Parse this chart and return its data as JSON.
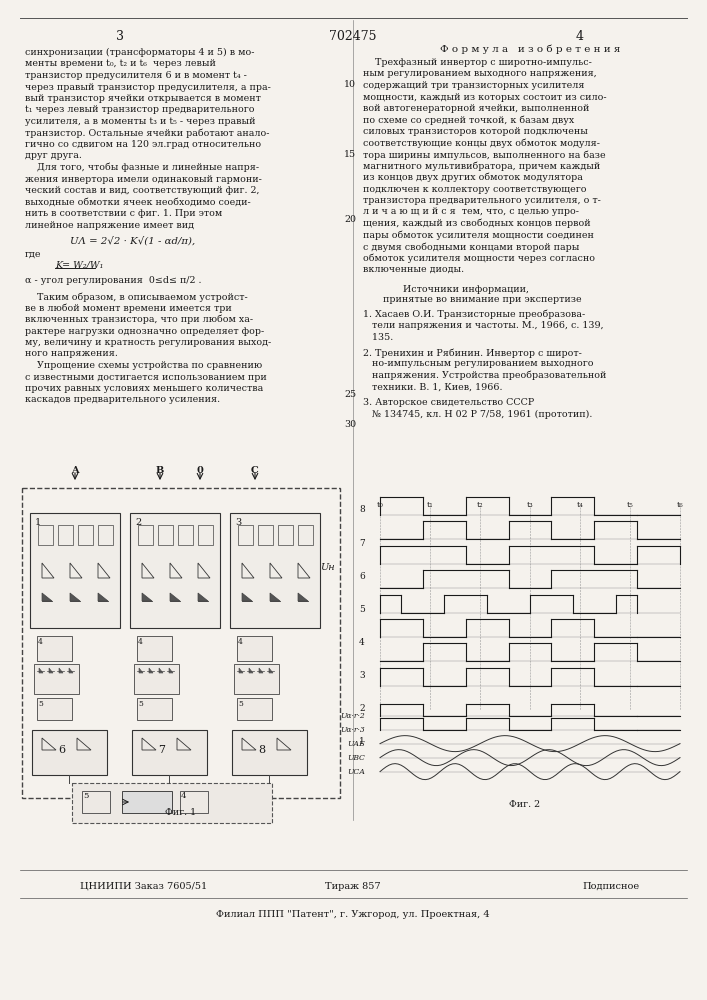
{
  "page_color": "#f5f2ed",
  "border_color": "#333333",
  "text_color": "#1a1a1a",
  "title": "702475",
  "page_num_left": "3",
  "page_num_right": "4",
  "formula_header": "Ф о р м у л а   и з о б р е т е н и я",
  "left_col_lines": [
    "синхронизации (трансформаторы 4 и 5) в мо-",
    "менты времени t₀, t₂ и t₆  через левый",
    "транзистор предусилителя 6 и в момент t₄ -",
    "через правый транзистор предусилителя, а пра-",
    "вый транзистор ячейки открывается в момент",
    "t₁ через левый транзистор предварительного",
    "усилителя, а в моменты t₃ и t₅ - через правый",
    "транзистор. Остальные ячейки работают анало-",
    "гично со сдвигом на 120 эл.град относительно",
    "друг друга.",
    "    Для того, чтобы фазные и линейные напря-",
    "жения инвертора имели одинаковый гармони-",
    "ческий состав и вид, соответствующий фиг. 2,",
    "выходные обмотки ячеек необходимо соеди-",
    "нить в соответствии с фиг. 1. При этом",
    "линейное напряжение имеет вид"
  ],
  "formula_text": "UΛ = 2√2 · K√(1 - αd/π),",
  "where_text": "где",
  "k_text": "K= W₂/W₁",
  "alpha_text": "α - угол регулирования  0≤d≤ π/2 .",
  "right_col_lines": [
    "    Трехфазный инвертор с широтно-импульс-",
    "ным регулированием выходного напряжения,",
    "содержащий три транзисторных усилителя",
    "мощности, каждый из которых состоит из сило-",
    "вой автогенераторной ячейки, выполненной",
    "по схеме со средней точкой, к базам двух",
    "силовых транзисторов которой подключены",
    "соответствующие концы двух обмоток модуля-",
    "тора ширины импульсов, выполненного на базе",
    "магнитного мультивибратора, причем каждый",
    "из концов двух других обмоток модулятора",
    "подключен к коллектору соответствующего",
    "транзистора предварительного усилителя, о т-",
    "л и ч а ю щ и й с я  тем, что, с целью упро-",
    "щения, каждый из свободных концов первой",
    "пары обмоток усилителя мощности соединен",
    "с двумя свободными концами второй пары",
    "обмоток усилителя мощности через согласно",
    "включенные диоды."
  ],
  "sources_header": "Источники информации,",
  "sources_subheader": "принятые во внимание при экспертизе",
  "source1": "1. Хасаев О.И. Транзисторные преобразова-\n   тели напряжения и частоты. М., 1966, с. 139,\n   135.",
  "source2": "2. Тренихин и Рябинин. Инвертор с широт-\n   но-импульсным регулированием выходного\n   напряжения. Устройства преобразовательной\n   техники. В. 1, Киев, 1966.",
  "source3": "3. Авторское свидетельство СССР\n   № 134745, кл. Н 02 Р 7/58, 1961 (прототип).",
  "footer_left": "ЦНИИПИ Заказ 7605/51",
  "footer_center": "Тираж 857",
  "footer_right": "Подписное",
  "footer_bottom": "Филиал ППП \"Патент\", г. Ужгород, ул. Проектная, 4",
  "fig1_label": "Фиг. 1",
  "fig2_label": "Фиг. 2",
  "line_numbers": [
    "10",
    "15",
    "20",
    "25",
    "30"
  ]
}
